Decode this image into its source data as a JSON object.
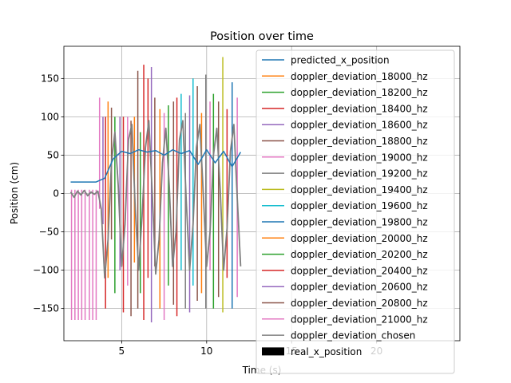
{
  "chart_data": {
    "type": "line",
    "title": "Position over time",
    "xlabel": "Time (s)",
    "ylabel": "Position (cm)",
    "xlim": [
      1.6,
      24.9
    ],
    "ylim": [
      -192,
      192
    ],
    "xticks": [
      5,
      10,
      15,
      20
    ],
    "xtick_labels": [
      "5",
      "10",
      "15",
      "20"
    ],
    "yticks": [
      -150,
      -100,
      -50,
      0,
      50,
      100,
      150
    ],
    "ytick_labels": [
      "−150",
      "−100",
      "−50",
      "0",
      "50",
      "100",
      "150"
    ],
    "grid": true,
    "legend_location": "upper right",
    "series": [
      {
        "name": "predicted_x_position",
        "color": "#1f77b4"
      },
      {
        "name": "doppler_deviation_18000_hz",
        "color": "#ff7f0e"
      },
      {
        "name": "doppler_deviation_18200_hz",
        "color": "#2ca02c"
      },
      {
        "name": "doppler_deviation_18400_hz",
        "color": "#d62728"
      },
      {
        "name": "doppler_deviation_18600_hz",
        "color": "#9467bd"
      },
      {
        "name": "doppler_deviation_18800_hz",
        "color": "#8c564b"
      },
      {
        "name": "doppler_deviation_19000_hz",
        "color": "#e377c2"
      },
      {
        "name": "doppler_deviation_19200_hz",
        "color": "#7f7f7f"
      },
      {
        "name": "doppler_deviation_19400_hz",
        "color": "#bcbd22"
      },
      {
        "name": "doppler_deviation_19600_hz",
        "color": "#17becf"
      },
      {
        "name": "doppler_deviation_19800_hz",
        "color": "#1f77b4"
      },
      {
        "name": "doppler_deviation_20000_hz",
        "color": "#ff7f0e"
      },
      {
        "name": "doppler_deviation_20200_hz",
        "color": "#2ca02c"
      },
      {
        "name": "doppler_deviation_20400_hz",
        "color": "#d62728"
      },
      {
        "name": "doppler_deviation_20600_hz",
        "color": "#9467bd"
      },
      {
        "name": "doppler_deviation_20800_hz",
        "color": "#8c564b"
      },
      {
        "name": "doppler_deviation_21000_hz",
        "color": "#e377c2"
      },
      {
        "name": "doppler_deviation_chosen",
        "color": "#7f7f7f"
      },
      {
        "name": "real_x_position",
        "color": "#000000",
        "style": "patch"
      }
    ],
    "predicted_x_position": {
      "x": [
        2.0,
        3.5,
        4.0,
        4.5,
        5.0,
        5.5,
        6.0,
        6.5,
        7.0,
        7.5,
        8.0,
        8.5,
        9.0,
        9.5,
        10.0,
        10.5,
        11.0,
        11.5,
        12.0
      ],
      "y": [
        15,
        15,
        20,
        45,
        55,
        52,
        57,
        54,
        56,
        50,
        57,
        52,
        56,
        38,
        57,
        40,
        55,
        35,
        54
      ]
    },
    "chosen_signal": {
      "x": [
        2.0,
        2.2,
        2.4,
        2.6,
        2.8,
        3.0,
        3.2,
        3.4,
        3.6,
        3.8,
        4.0,
        4.2,
        4.4,
        4.6,
        4.8,
        5.0,
        5.2,
        5.4,
        5.6,
        5.8,
        6.0,
        6.2,
        6.4,
        6.6,
        6.8,
        7.0,
        7.2,
        7.4,
        7.6,
        7.8,
        8.0,
        8.2,
        8.4,
        8.6,
        8.8,
        9.0,
        9.2,
        9.4,
        9.6,
        9.8,
        10.0,
        10.2,
        10.4,
        10.6,
        10.8,
        11.0,
        11.2,
        11.4,
        11.6,
        11.8,
        12.0
      ],
      "y": [
        2,
        -5,
        3,
        -2,
        4,
        -3,
        2,
        -1,
        3,
        -20,
        -110,
        -60,
        40,
        80,
        10,
        -95,
        -40,
        70,
        90,
        -20,
        -100,
        -30,
        60,
        95,
        0,
        -105,
        -60,
        40,
        85,
        10,
        -95,
        -50,
        70,
        95,
        -10,
        -100,
        -40,
        60,
        90,
        0,
        -95,
        -50,
        50,
        85,
        5,
        -100,
        -45,
        55,
        90,
        -5,
        -95
      ]
    },
    "spikes": {
      "x": [
        2.05,
        2.25,
        2.45,
        2.65,
        2.85,
        3.1,
        3.3,
        3.5,
        3.7,
        3.9,
        4.05,
        4.2,
        4.4,
        4.6,
        4.9,
        5.1,
        5.35,
        5.55,
        5.75,
        5.95,
        6.1,
        6.3,
        6.55,
        6.75,
        6.95,
        7.25,
        7.5,
        7.75,
        8.05,
        8.25,
        8.5,
        8.75,
        9.0,
        9.2,
        9.45,
        9.7,
        9.95,
        10.2,
        10.4,
        10.7,
        10.95,
        11.2,
        11.5,
        11.8
      ],
      "low": [
        -165,
        -165,
        -165,
        -165,
        -165,
        -165,
        -165,
        -165,
        -20,
        -40,
        -150,
        -110,
        -60,
        -130,
        -100,
        -155,
        -120,
        -160,
        -90,
        -150,
        -130,
        -165,
        -110,
        -168,
        -95,
        -150,
        -165,
        -120,
        -145,
        -160,
        -100,
        -150,
        -155,
        -120,
        -140,
        -130,
        -150,
        -100,
        -150,
        -135,
        -155,
        -110,
        -150,
        -135
      ],
      "high": [
        5,
        5,
        5,
        5,
        5,
        5,
        5,
        5,
        125,
        100,
        100,
        120,
        112,
        100,
        100,
        100,
        100,
        95,
        100,
        160,
        80,
        168,
        150,
        165,
        125,
        110,
        105,
        115,
        120,
        125,
        130,
        105,
        128,
        150,
        140,
        105,
        155,
        120,
        130,
        120,
        178,
        110,
        145,
        125
      ]
    },
    "spike_colors": [
      "#e377c2",
      "#e377c2",
      "#e377c2",
      "#e377c2",
      "#e377c2",
      "#e377c2",
      "#e377c2",
      "#e377c2",
      "#e377c2",
      "#9467bd",
      "#d62728",
      "#ff7f0e",
      "#8c564b",
      "#2ca02c",
      "#9467bd",
      "#d62728",
      "#e377c2",
      "#8c564b",
      "#ff7f0e",
      "#8c564b",
      "#2ca02c",
      "#d62728",
      "#d62728",
      "#9467bd",
      "#8c564b",
      "#ff7f0e",
      "#e377c2",
      "#2ca02c",
      "#8c564b",
      "#d62728",
      "#17becf",
      "#7f7f7f",
      "#9467bd",
      "#17becf",
      "#8c564b",
      "#ff7f0e",
      "#7f7f7f",
      "#e377c2",
      "#2ca02c",
      "#8c564b",
      "#bcbd22",
      "#d62728",
      "#1f77b4",
      "#e377c2"
    ]
  }
}
